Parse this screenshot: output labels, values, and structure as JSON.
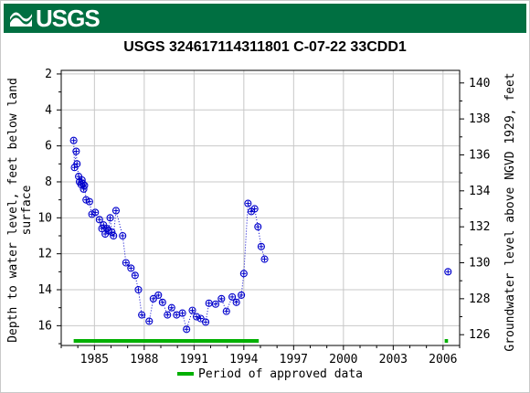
{
  "header": {
    "logo_text": "USGS",
    "brand_color": "#006f41"
  },
  "chart_data": {
    "type": "scatter",
    "title": "USGS 324617114311801 C-07-22 33CDD1",
    "ylabel_left": "Depth to water level, feet below land surface",
    "ylabel_left_lines": [
      "Depth to water level, feet below land",
      "surface"
    ],
    "ylabel_right": "Groundwater level above NGVD 1929, feet",
    "xlim": [
      1983.0,
      2007.0
    ],
    "ylim_left": [
      17.1,
      1.8
    ],
    "ylim_right": [
      125.4,
      140.7
    ],
    "x_ticks": [
      1985,
      1988,
      1991,
      1994,
      1997,
      2000,
      2003,
      2006
    ],
    "x_tick_labels": [
      "1985",
      "1988",
      "1991",
      "1994",
      "1997",
      "2000",
      "2003",
      "2006"
    ],
    "y_left_ticks": [
      2,
      4,
      6,
      8,
      10,
      12,
      14,
      16
    ],
    "y_right_ticks": [
      126,
      128,
      130,
      132,
      134,
      136,
      138,
      140
    ],
    "grid": true,
    "series": [
      {
        "marker": "circle-plus",
        "color": "#0000cc",
        "line": "dotted",
        "x": [
          1983.75,
          1983.8,
          1983.9,
          1983.95,
          1984.05,
          1984.1,
          1984.2,
          1984.25,
          1984.3,
          1984.35,
          1984.4,
          1984.5,
          1984.7,
          1984.85,
          1985.05,
          1985.3,
          1985.45,
          1985.55,
          1985.65,
          1985.75,
          1985.85,
          1985.95,
          1986.05,
          1986.15,
          1986.3,
          1986.7,
          1986.9,
          1987.2,
          1987.45,
          1987.65,
          1987.85,
          1988.3,
          1988.55,
          1988.85,
          1989.1,
          1989.4,
          1989.65,
          1989.95,
          1990.3,
          1990.55,
          1990.9,
          1991.15,
          1991.4,
          1991.7,
          1991.9,
          1992.3,
          1992.65,
          1992.95,
          1993.3,
          1993.55,
          1993.85,
          1994.0,
          1994.25,
          1994.45,
          1994.65,
          1994.85,
          1995.05,
          1995.25,
          2006.3
        ],
        "y": [
          5.7,
          7.2,
          6.3,
          7.0,
          7.7,
          8.0,
          8.15,
          7.9,
          8.1,
          8.4,
          8.2,
          9.0,
          9.1,
          9.8,
          9.7,
          10.1,
          10.6,
          10.4,
          10.9,
          10.6,
          10.7,
          10.0,
          10.8,
          11.0,
          9.6,
          11.0,
          12.5,
          12.8,
          13.2,
          14.0,
          15.4,
          15.75,
          14.5,
          14.3,
          14.7,
          15.4,
          15.0,
          15.4,
          15.3,
          16.2,
          15.15,
          15.5,
          15.6,
          15.8,
          14.75,
          14.8,
          14.5,
          15.2,
          14.4,
          14.7,
          14.3,
          13.1,
          9.2,
          9.65,
          9.5,
          10.5,
          11.6,
          12.3,
          13.0
        ]
      }
    ],
    "approved_periods": [
      [
        1983.75,
        1994.9
      ],
      [
        2006.1,
        2006.3
      ]
    ],
    "approved_color": "#00b000",
    "legend": {
      "label": "Period of approved data",
      "placement": "bottom-center"
    }
  }
}
